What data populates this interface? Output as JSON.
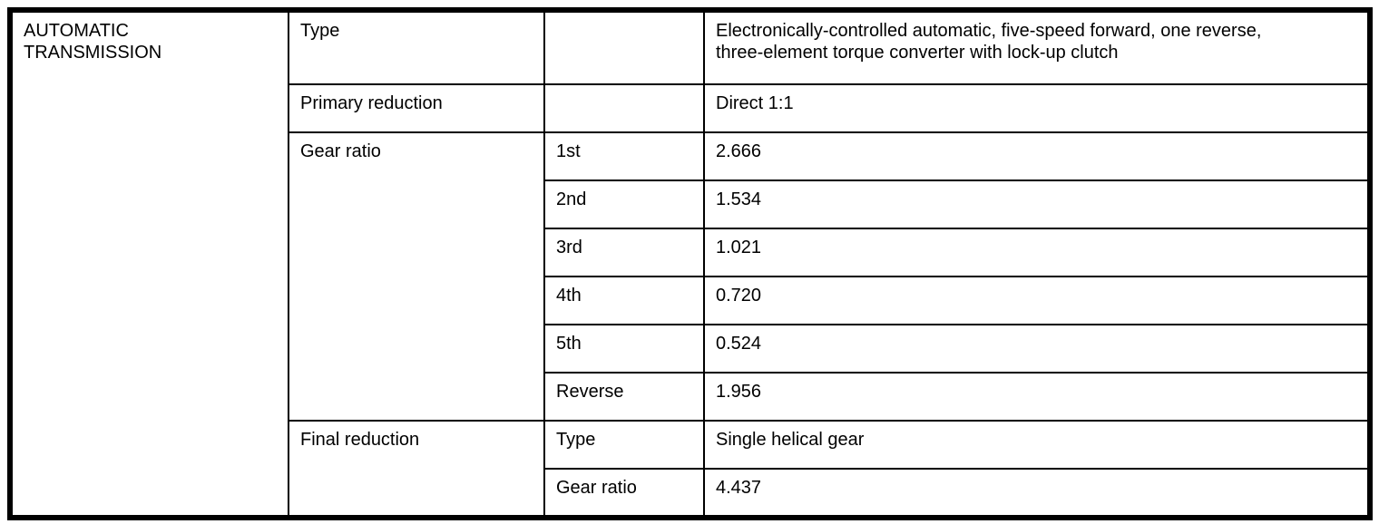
{
  "table": {
    "section_label": "AUTOMATIC TRANSMISSION",
    "rows": [
      {
        "label": "Type",
        "sub": "",
        "value": "Electronically-controlled automatic, five-speed forward, one reverse, three-element torque converter with lock-up clutch"
      },
      {
        "label": "Primary reduction",
        "sub": "",
        "value": "Direct 1:1"
      },
      {
        "label": "Gear ratio",
        "sub": "1st",
        "value": "2.666"
      },
      {
        "sub": "2nd",
        "value": "1.534"
      },
      {
        "sub": "3rd",
        "value": "1.021"
      },
      {
        "sub": "4th",
        "value": "0.720"
      },
      {
        "sub": "5th",
        "value": "0.524"
      },
      {
        "sub": "Reverse",
        "value": "1.956"
      },
      {
        "label": "Final reduction",
        "sub": "Type",
        "value": "Single helical gear"
      },
      {
        "sub": "Gear ratio",
        "value": "4.437"
      }
    ]
  }
}
